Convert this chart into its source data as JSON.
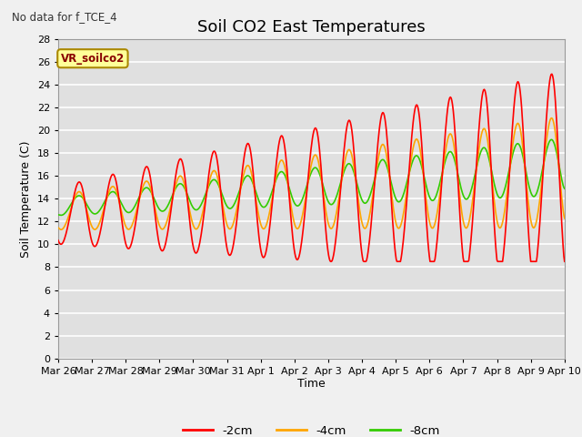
{
  "title": "Soil CO2 East Temperatures",
  "subtitle": "No data for f_TCE_4",
  "ylabel": "Soil Temperature (C)",
  "xlabel": "Time",
  "annotation": "VR_soilco2",
  "ylim": [
    0,
    28
  ],
  "yticks": [
    0,
    2,
    4,
    6,
    8,
    10,
    12,
    14,
    16,
    18,
    20,
    22,
    24,
    26,
    28
  ],
  "xtick_labels": [
    "Mar 26",
    "Mar 27",
    "Mar 28",
    "Mar 29",
    "Mar 30",
    "Mar 31",
    "Apr 1",
    "Apr 2",
    "Apr 3",
    "Apr 4",
    "Apr 5",
    "Apr 6",
    "Apr 7",
    "Apr 8",
    "Apr 9",
    "Apr 10"
  ],
  "line_colors": {
    "2cm": "#ff0000",
    "4cm": "#ffa500",
    "8cm": "#33cc00"
  },
  "legend_labels": [
    "-2cm",
    "-4cm",
    "-8cm"
  ],
  "background_color": "#e0e0e0",
  "fig_background": "#f0f0f0",
  "grid_color": "#ffffff",
  "title_fontsize": 13,
  "axis_fontsize": 9,
  "tick_fontsize": 8,
  "annotation_color": "#880000",
  "annotation_bg": "#ffff99",
  "annotation_edge": "#aa8800"
}
